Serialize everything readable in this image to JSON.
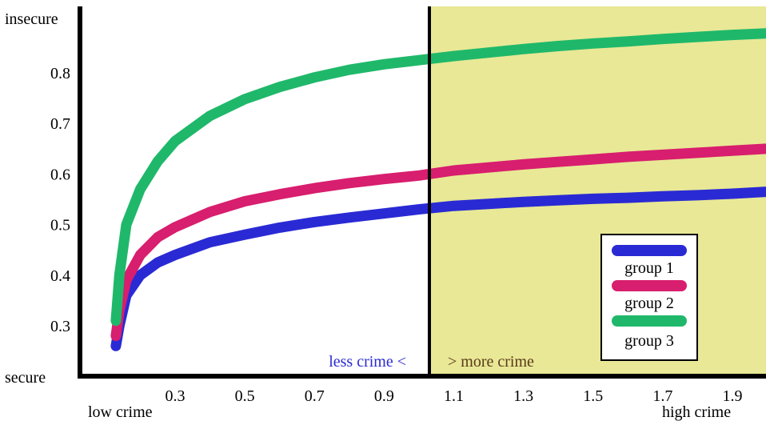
{
  "chart_data": {
    "type": "line",
    "title": "",
    "xlabel": "",
    "ylabel": "",
    "xlim": [
      0.12,
      2.0
    ],
    "ylim": [
      0.2,
      0.9
    ],
    "x_ticks": [
      0.3,
      0.5,
      0.7,
      0.9,
      1.1,
      1.3,
      1.5,
      1.7,
      1.9
    ],
    "x_tick_labels": [
      "0.3",
      "0.5",
      "0.7",
      "0.9",
      "1.1",
      "1.3",
      "1.5",
      "1.7",
      "1.9"
    ],
    "y_ticks": [
      0.3,
      0.4,
      0.5,
      0.6,
      0.7,
      0.8
    ],
    "y_tick_labels": [
      "0.3",
      "0.4",
      "0.5",
      "0.6",
      "0.7",
      "0.8"
    ],
    "y_top_label": "insecure",
    "y_bottom_label": "secure",
    "x_left_label": "low crime",
    "x_right_label": "high crime",
    "divider_x": 1.03,
    "region_left_label": "less crime <",
    "region_right_label": "> more crime",
    "grid": false,
    "legend_position": "bottom-right",
    "series": [
      {
        "name": "group 1",
        "color": "#2a2ad4",
        "x": [
          0.13,
          0.14,
          0.16,
          0.2,
          0.25,
          0.3,
          0.4,
          0.5,
          0.6,
          0.7,
          0.8,
          0.9,
          1.0,
          1.1,
          1.2,
          1.3,
          1.4,
          1.5,
          1.6,
          1.7,
          1.8,
          1.9,
          2.0
        ],
        "y": [
          0.26,
          0.3,
          0.36,
          0.4,
          0.425,
          0.44,
          0.465,
          0.48,
          0.494,
          0.505,
          0.514,
          0.522,
          0.53,
          0.537,
          0.541,
          0.545,
          0.548,
          0.551,
          0.553,
          0.556,
          0.558,
          0.561,
          0.565
        ]
      },
      {
        "name": "group 2",
        "color": "#d81e6e",
        "x": [
          0.13,
          0.14,
          0.16,
          0.2,
          0.25,
          0.3,
          0.4,
          0.5,
          0.6,
          0.7,
          0.8,
          0.9,
          1.0,
          1.1,
          1.2,
          1.3,
          1.4,
          1.5,
          1.6,
          1.7,
          1.8,
          1.9,
          2.0
        ],
        "y": [
          0.28,
          0.33,
          0.39,
          0.44,
          0.475,
          0.495,
          0.525,
          0.546,
          0.56,
          0.572,
          0.582,
          0.59,
          0.597,
          0.607,
          0.613,
          0.619,
          0.624,
          0.629,
          0.634,
          0.638,
          0.642,
          0.646,
          0.65
        ]
      },
      {
        "name": "group 3",
        "color": "#1fb86a",
        "x": [
          0.13,
          0.14,
          0.16,
          0.2,
          0.25,
          0.3,
          0.4,
          0.5,
          0.6,
          0.7,
          0.8,
          0.9,
          1.0,
          1.1,
          1.2,
          1.3,
          1.4,
          1.5,
          1.6,
          1.7,
          1.8,
          1.9,
          2.0
        ],
        "y": [
          0.31,
          0.4,
          0.5,
          0.57,
          0.625,
          0.665,
          0.715,
          0.748,
          0.772,
          0.791,
          0.806,
          0.817,
          0.825,
          0.833,
          0.84,
          0.847,
          0.853,
          0.858,
          0.862,
          0.867,
          0.871,
          0.875,
          0.878
        ]
      }
    ]
  },
  "colors": {
    "axis": "#000000",
    "shaded_region": "#e8e896",
    "region_left_text": "#2a2ad4",
    "region_right_text": "#5a3a1a",
    "legend_border": "#000000",
    "legend_bg": "#ffffff"
  }
}
